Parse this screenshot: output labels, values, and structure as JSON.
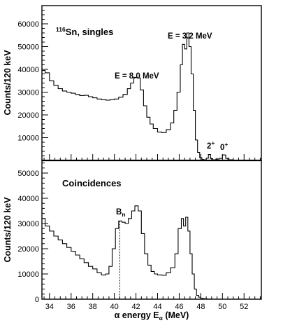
{
  "chart_data": [
    {
      "type": "line",
      "panel": "top",
      "title": "",
      "annotation_sup": "116",
      "annotation_text": "Sn, singles",
      "peak_labels": [
        {
          "text": "E = 8.0 MeV",
          "x": 42.0
        },
        {
          "text": "E = 3.2 MeV",
          "x": 46.7
        },
        {
          "base": "2",
          "sup": "+",
          "x": 48.7
        },
        {
          "base": "0",
          "sup": "+",
          "x": 50.0
        }
      ],
      "ylim": [
        0,
        68000
      ],
      "yticks": [
        10000,
        20000,
        30000,
        40000,
        50000,
        60000
      ],
      "ytick_labels": [
        "10000",
        "20000",
        "30000",
        "40000",
        "50000",
        "60000"
      ],
      "x": [
        33.3,
        33.6,
        34.0,
        34.4,
        34.8,
        35.2,
        35.6,
        36.0,
        36.4,
        36.8,
        37.2,
        37.6,
        38.0,
        38.4,
        38.8,
        39.2,
        39.6,
        40.0,
        40.4,
        40.8,
        41.2,
        41.5,
        41.8,
        42.1,
        42.4,
        42.7,
        43.0,
        43.3,
        43.6,
        44.0,
        44.4,
        44.8,
        45.2,
        45.5,
        45.8,
        46.1,
        46.3,
        46.5,
        46.7,
        46.9,
        47.1,
        47.3,
        47.5,
        47.7,
        47.9,
        48.1,
        48.3,
        48.5,
        48.7,
        48.9,
        49.1,
        49.4,
        49.7,
        50.0,
        50.3,
        50.6,
        51.0,
        51.5,
        52.0,
        52.5,
        53.0,
        53.6
      ],
      "values": [
        39500,
        38500,
        35000,
        33000,
        31500,
        30500,
        30000,
        29500,
        29000,
        28500,
        28600,
        28000,
        27500,
        27000,
        26700,
        26500,
        26700,
        27000,
        27800,
        29000,
        31500,
        34000,
        36500,
        36200,
        31000,
        24000,
        19000,
        16000,
        14000,
        12500,
        12200,
        13500,
        16500,
        22000,
        30000,
        42000,
        51000,
        49000,
        56000,
        50000,
        38000,
        22000,
        9000,
        3500,
        1200,
        400,
        200,
        1000,
        2600,
        800,
        300,
        600,
        900,
        2400,
        900,
        300,
        100,
        50,
        0,
        0,
        0,
        0
      ]
    },
    {
      "type": "line",
      "panel": "bottom",
      "title": "",
      "annotation_text": "Coincidences",
      "marker": {
        "base": "B",
        "sub": "n",
        "x": 40.5
      },
      "ylim": [
        0,
        55000
      ],
      "yticks": [
        0,
        10000,
        20000,
        30000,
        40000,
        50000
      ],
      "ytick_labels": [
        "0",
        "10000",
        "20000",
        "30000",
        "40000",
        "50000"
      ],
      "x": [
        33.3,
        33.6,
        34.0,
        34.4,
        34.8,
        35.2,
        35.6,
        36.0,
        36.4,
        36.8,
        37.2,
        37.6,
        38.0,
        38.4,
        38.8,
        39.2,
        39.5,
        39.8,
        40.1,
        40.4,
        40.7,
        41.0,
        41.3,
        41.6,
        41.9,
        42.2,
        42.5,
        42.8,
        43.1,
        43.4,
        43.7,
        44.0,
        44.4,
        44.8,
        45.2,
        45.6,
        45.9,
        46.2,
        46.4,
        46.6,
        46.8,
        47.0,
        47.2,
        47.4,
        47.6,
        47.8,
        48.0,
        48.3,
        48.6,
        49.0,
        49.5,
        50.0,
        51.0,
        52.0,
        53.0,
        53.6
      ],
      "values": [
        32000,
        29000,
        27000,
        25000,
        23500,
        22000,
        20500,
        19000,
        17500,
        16000,
        14500,
        13000,
        12000,
        10500,
        9600,
        10000,
        13000,
        20000,
        28000,
        31000,
        30500,
        30000,
        32000,
        35000,
        37000,
        35000,
        26000,
        18000,
        13500,
        11000,
        10000,
        9600,
        9500,
        10500,
        12500,
        18000,
        28000,
        32000,
        29000,
        32500,
        27000,
        18000,
        10000,
        4000,
        1500,
        800,
        300,
        100,
        50,
        0,
        0,
        0,
        0,
        0,
        0,
        0
      ]
    }
  ],
  "xaxis": {
    "xlim": [
      33.3,
      53.6
    ],
    "ticks": [
      34,
      36,
      38,
      40,
      42,
      44,
      46,
      48,
      50,
      52
    ],
    "tick_labels": [
      "34",
      "36",
      "38",
      "40",
      "42",
      "44",
      "46",
      "48",
      "50",
      "52"
    ],
    "label_pre": "α energy E",
    "label_sub": "α",
    "label_post": " (MeV)"
  },
  "ylabel": "Counts/120 keV"
}
